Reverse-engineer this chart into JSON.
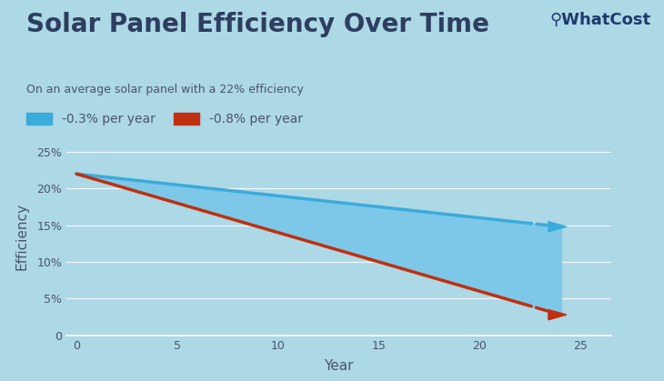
{
  "title": "Solar Panel Efficiency Over Time",
  "subtitle": "On an average solar panel with a 22% efficiency",
  "xlabel": "Year",
  "ylabel": "Efficiency",
  "background_color": "#ADD8E6",
  "plot_bg_color": "#ADD8E6",
  "start_efficiency": 22,
  "rate_blue": -0.3,
  "rate_red": -0.8,
  "x_end": 24,
  "x_dashed_start": 22,
  "blue_color": "#3aabdb",
  "red_color": "#C03010",
  "fill_color": "#7DC8E8",
  "fill_alpha": 1.0,
  "title_color": "#2d3e5f",
  "subtitle_color": "#4a5568",
  "legend_label_blue": "-0.3% per year",
  "legend_label_red": "-0.8% per year",
  "yticks": [
    0,
    5,
    10,
    15,
    20,
    25
  ],
  "xticks": [
    0,
    5,
    10,
    15,
    20,
    25
  ],
  "ylim": [
    0,
    27
  ],
  "xlim": [
    -0.5,
    26.5
  ],
  "grid_color": "#ffffff",
  "tick_label_color": "#4a5568",
  "axis_label_color": "#4a5568"
}
